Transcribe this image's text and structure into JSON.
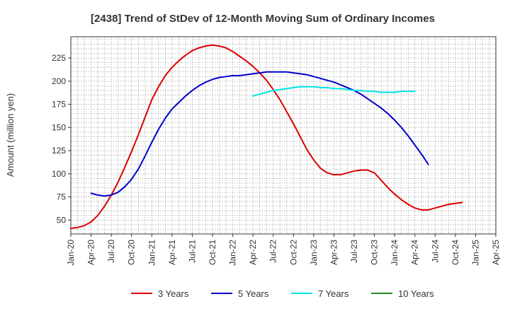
{
  "chart_data": {
    "type": "line",
    "title": "[2438]  Trend of StDev of 12-Month Moving Sum of Ordinary Incomes",
    "ylabel": "Amount (million yen)",
    "xlabel": "",
    "ylim": [
      35,
      248
    ],
    "yticks": [
      50,
      75,
      100,
      125,
      150,
      175,
      200,
      225
    ],
    "xticks": [
      "Jan-20",
      "Apr-20",
      "Jul-20",
      "Oct-20",
      "Jan-21",
      "Apr-21",
      "Jul-21",
      "Oct-21",
      "Jan-22",
      "Apr-22",
      "Jul-22",
      "Oct-22",
      "Jan-23",
      "Apr-23",
      "Jul-23",
      "Oct-23",
      "Jan-24",
      "Apr-24",
      "Jul-24",
      "Oct-24",
      "Jan-25",
      "Apr-25"
    ],
    "x_unit": "month",
    "grid": true,
    "legend_position": "bottom",
    "series": [
      {
        "name": "3 Years",
        "color": "#dd0000",
        "start": "Jan-20",
        "values": [
          41,
          42,
          44,
          48,
          55,
          65,
          77,
          91,
          107,
          124,
          142,
          161,
          180,
          194,
          206,
          215,
          222,
          228,
          233,
          236,
          238,
          239,
          238,
          236,
          232,
          227,
          222,
          216,
          209,
          201,
          191,
          180,
          167,
          154,
          140,
          126,
          115,
          106,
          101,
          99,
          99,
          101,
          103,
          104,
          104,
          101,
          93,
          85,
          78,
          72,
          67,
          63,
          61,
          61,
          63,
          65,
          67,
          68,
          69
        ]
      },
      {
        "name": "5 Years",
        "color": "#0000cc",
        "start": "Apr-20",
        "values": [
          79,
          77,
          76,
          77,
          80,
          86,
          94,
          105,
          119,
          134,
          148,
          160,
          170,
          177,
          184,
          190,
          195,
          199,
          202,
          204,
          205,
          206,
          206,
          207,
          208,
          209,
          210,
          210,
          210,
          210,
          209,
          208,
          207,
          205,
          203,
          201,
          199,
          196,
          193,
          190,
          186,
          181,
          176,
          171,
          165,
          158,
          150,
          141,
          131,
          121,
          110
        ]
      },
      {
        "name": "7 Years",
        "color": "#00e5e5",
        "start": "Apr-22",
        "values": [
          184,
          186,
          188,
          190,
          191,
          192,
          193,
          194,
          194,
          194,
          193,
          193,
          192,
          192,
          191,
          190,
          190,
          189,
          189,
          188,
          188,
          188,
          189,
          189,
          189
        ]
      },
      {
        "name": "10 Years",
        "color": "#228822",
        "start": "Apr-22",
        "values": []
      }
    ]
  }
}
